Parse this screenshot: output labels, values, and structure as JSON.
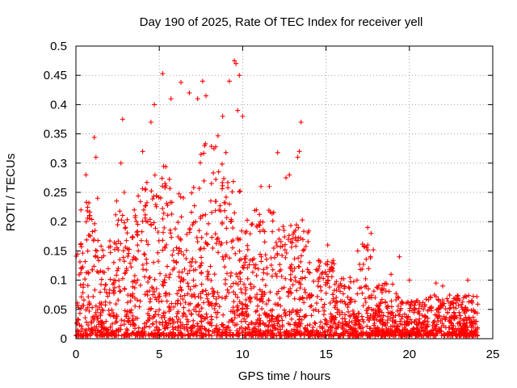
{
  "chart_data": {
    "type": "scatter",
    "title": "Day 190 of 2025, Rate Of TEC Index for receiver yell",
    "xlabel": "GPS time / hours",
    "ylabel": "ROTI / TECUs",
    "xlim": [
      0,
      25
    ],
    "ylim": [
      0,
      0.5
    ],
    "grid": true,
    "marker": "+",
    "color": "#ff0000",
    "x_ticks": [
      "0",
      "5",
      "10",
      "15",
      "20",
      "25"
    ],
    "y_ticks": [
      "0",
      "0.05",
      "0.1",
      "0.15",
      "0.2",
      "0.25",
      "0.3",
      "0.35",
      "0.4",
      "0.45",
      "0.5"
    ],
    "series": [
      {
        "name": "ROTI",
        "envelope_description_hours": [
          0,
          24
        ],
        "points": [
          [
            1.1,
            0.344
          ],
          [
            1.2,
            0.31
          ],
          [
            2.8,
            0.375
          ],
          [
            5.2,
            0.453
          ],
          [
            4.7,
            0.4
          ],
          [
            5.7,
            0.41
          ],
          [
            6.3,
            0.438
          ],
          [
            7.6,
            0.44
          ],
          [
            7.8,
            0.415
          ],
          [
            9.5,
            0.475
          ],
          [
            9.6,
            0.47
          ],
          [
            9.8,
            0.45
          ],
          [
            9.2,
            0.44
          ],
          [
            9.7,
            0.39
          ],
          [
            10.0,
            0.38
          ],
          [
            8.8,
            0.38
          ],
          [
            6.8,
            0.42
          ],
          [
            7.3,
            0.41
          ],
          [
            13.5,
            0.37
          ],
          [
            13.4,
            0.32
          ],
          [
            13.3,
            0.31
          ],
          [
            12.1,
            0.318
          ],
          [
            11.6,
            0.26
          ],
          [
            11.1,
            0.26
          ],
          [
            12.8,
            0.28
          ],
          [
            12.6,
            0.275
          ],
          [
            0.6,
            0.28
          ],
          [
            0.3,
            0.22
          ],
          [
            1.3,
            0.24
          ],
          [
            2.9,
            0.25
          ],
          [
            2.7,
            0.3
          ],
          [
            3.5,
            0.22
          ],
          [
            4.0,
            0.32
          ],
          [
            4.5,
            0.37
          ],
          [
            17.5,
            0.19
          ],
          [
            17.7,
            0.18
          ],
          [
            15.1,
            0.16
          ],
          [
            16.9,
            0.15
          ],
          [
            19.4,
            0.14
          ],
          [
            18.9,
            0.11
          ],
          [
            23.5,
            0.1
          ],
          [
            21.6,
            0.095
          ],
          [
            22.0,
            0.09
          ],
          [
            20.0,
            0.1
          ]
        ]
      }
    ]
  }
}
